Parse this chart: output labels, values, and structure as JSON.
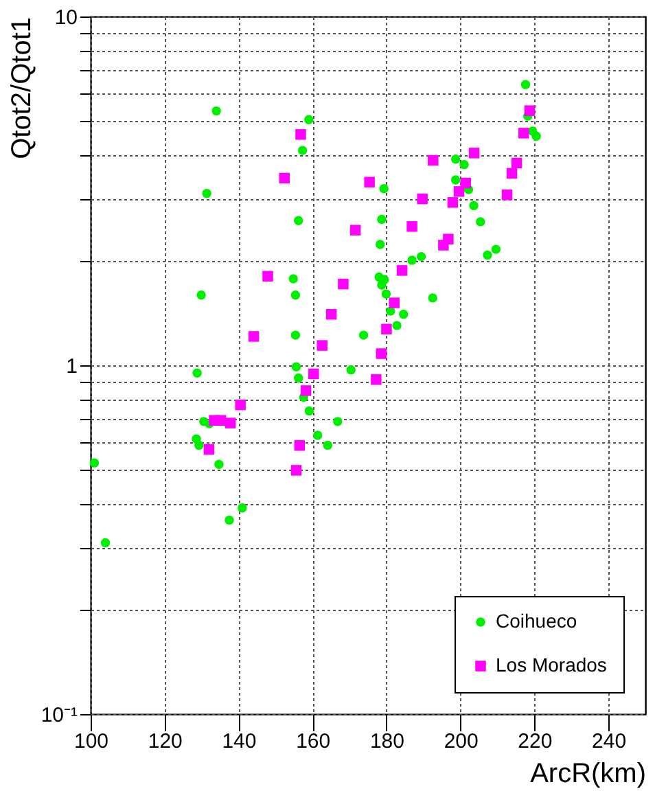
{
  "chart_data": {
    "type": "scatter",
    "xlabel": "ArcR(km)",
    "ylabel": "Qtot2/Qtot1",
    "log": "y",
    "grid": true,
    "legend": "bottom right",
    "xlim": [
      100,
      250
    ],
    "xticks": [
      100,
      120,
      140,
      160,
      180,
      200,
      220,
      240
    ],
    "ylim": [
      0.1,
      10
    ],
    "yticks": [
      {
        "value": 0.1,
        "label": "10⁻¹"
      },
      {
        "value": 0.2,
        "label": null
      },
      {
        "value": 0.3,
        "label": null
      },
      {
        "value": 0.4,
        "label": null
      },
      {
        "value": 0.5,
        "label": null
      },
      {
        "value": 0.6,
        "label": null
      },
      {
        "value": 0.7,
        "label": null
      },
      {
        "value": 0.8,
        "label": null
      },
      {
        "value": 0.9,
        "label": null
      },
      1,
      {
        "value": 2,
        "label": null
      },
      {
        "value": 3,
        "label": null
      },
      {
        "value": 4,
        "label": null
      },
      {
        "value": 5,
        "label": null
      },
      {
        "value": 6,
        "label": null
      },
      {
        "value": 7,
        "label": null
      },
      {
        "value": 8,
        "label": null
      },
      {
        "value": 9,
        "label": null
      },
      10
    ],
    "series": [
      {
        "name": "Coihueco",
        "color": "#00ee00",
        "marker": "circle",
        "x": [
          101,
          104,
          134,
          159,
          157.3,
          131.4,
          156.2,
          154.8,
          129.9,
          155.4,
          155.4,
          155.6,
          128.8,
          170.4,
          156.2,
          157.6,
          159.1,
          130.6,
          132.1,
          166.8,
          161.4,
          128.6,
          129.3,
          164.1,
          134.7,
          141,
          137.5,
          217.6,
          218.2,
          219.5,
          220.5,
          198.7,
          201,
          198.7,
          179.3,
          202.2,
          203.6,
          178.7,
          205.4,
          178.3,
          209.6,
          207.3,
          189.4,
          186.9,
          178,
          179.4,
          178.7,
          179.9,
          192.5,
          181.1,
          184.6,
          182.8,
          173.8
        ],
        "values": [
          0.525,
          0.31,
          5.36,
          5.06,
          4.13,
          3.11,
          2.6,
          1.77,
          1.59,
          1.59,
          1.22,
          0.99,
          0.95,
          0.97,
          0.92,
          0.81,
          0.74,
          0.69,
          0.68,
          0.69,
          0.63,
          0.615,
          0.59,
          0.59,
          0.52,
          0.39,
          0.36,
          6.38,
          5.18,
          4.69,
          4.54,
          3.9,
          3.76,
          3.4,
          3.21,
          3.19,
          2.87,
          2.62,
          2.58,
          2.22,
          2.15,
          2.07,
          2.05,
          2.0,
          1.79,
          1.76,
          1.7,
          1.6,
          1.56,
          1.43,
          1.4,
          1.3,
          1.22
        ]
      },
      {
        "name": "Los Morados",
        "color": "#ff00ff",
        "marker": "square",
        "x": [
          156.8,
          152.4,
          171.6,
          147.9,
          168.3,
          165.1,
          144.1,
          162.6,
          160.3,
          158.2,
          140.5,
          133.4,
          135.2,
          137.8,
          132,
          156.5,
          155.6,
          218.7,
          217.1,
          203.7,
          192.6,
          215.2,
          213.9,
          175.4,
          201.4,
          199.6,
          212.6,
          189.7,
          197.9,
          186.9,
          196.7,
          195.4,
          184.2,
          182.1,
          180,
          178.6,
          177.2
        ],
        "values": [
          4.59,
          3.44,
          2.44,
          1.8,
          1.71,
          1.4,
          1.21,
          1.14,
          0.945,
          0.846,
          0.77,
          0.695,
          0.695,
          0.683,
          0.574,
          0.589,
          0.5,
          5.37,
          4.63,
          4.06,
          3.87,
          3.8,
          3.55,
          3.35,
          3.33,
          3.15,
          3.08,
          3.0,
          2.93,
          2.5,
          2.3,
          2.21,
          1.87,
          1.51,
          1.27,
          1.08,
          0.91
        ]
      }
    ]
  }
}
